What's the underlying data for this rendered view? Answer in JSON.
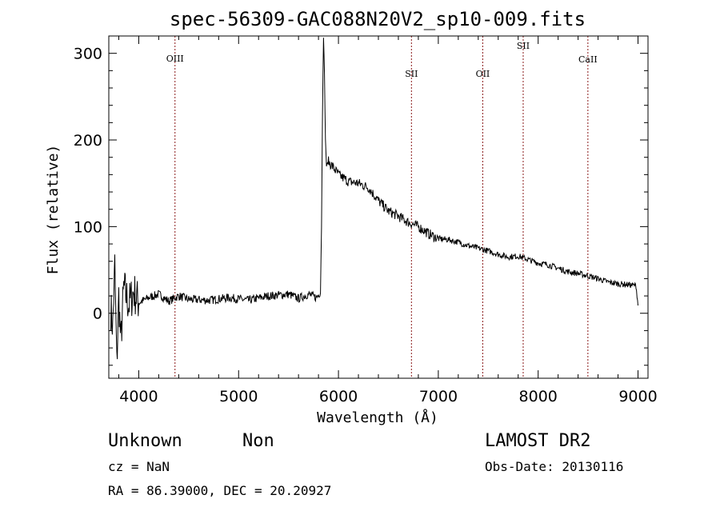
{
  "chart_data": {
    "type": "line",
    "title": "spec-56309-GAC088N20V2_sp10-009.fits",
    "xlabel": "Wavelength (Å)",
    "ylabel": "Flux (relative)",
    "xlim": [
      3700,
      9100
    ],
    "ylim": [
      -75,
      320
    ],
    "x_ticks": [
      4000,
      5000,
      6000,
      7000,
      8000,
      9000
    ],
    "y_ticks": [
      0,
      100,
      200,
      300
    ],
    "grid": false,
    "line_color": "#000000",
    "marker_color": "#8b1a1a",
    "spectral_lines": [
      {
        "label": "OIII",
        "x": 4363
      },
      {
        "label": "SII",
        "x": 6731
      },
      {
        "label": "OII",
        "x": 7445
      },
      {
        "label": "SII",
        "x": 7850
      },
      {
        "label": "CaII",
        "x": 8498
      }
    ],
    "series": [
      {
        "x": [
          3720,
          3740,
          3760,
          3780,
          3800,
          3820,
          3850,
          3900,
          3950,
          4000,
          4100,
          4200,
          4300,
          4400,
          4500,
          4700,
          4900,
          5100,
          5300,
          5500,
          5600,
          5700,
          5780,
          5820,
          5830,
          5840,
          5850,
          5860,
          5870,
          5880,
          5900,
          5950,
          6000,
          6100,
          6200,
          6300,
          6400,
          6500,
          6600,
          6700,
          6800,
          6900,
          7000,
          7100,
          7200,
          7300,
          7400,
          7500,
          7600,
          7700,
          7800,
          7900,
          8000,
          8100,
          8200,
          8300,
          8400,
          8500,
          8600,
          8700,
          8800,
          8900,
          8980,
          9000
        ],
        "y": [
          5,
          -15,
          55,
          -60,
          20,
          -35,
          30,
          10,
          25,
          12,
          18,
          22,
          14,
          20,
          16,
          15,
          18,
          15,
          20,
          22,
          17,
          22,
          18,
          25,
          100,
          230,
          320,
          275,
          200,
          170,
          175,
          168,
          160,
          152,
          150,
          145,
          130,
          118,
          112,
          105,
          100,
          92,
          86,
          85,
          82,
          78,
          75,
          72,
          68,
          65,
          66,
          62,
          58,
          56,
          52,
          48,
          46,
          43,
          40,
          36,
          34,
          33,
          32,
          10
        ]
      }
    ]
  },
  "footer": {
    "object_class": "Unknown",
    "object_subclass": "Non",
    "survey": "LAMOST DR2",
    "cz": "cz = NaN",
    "obs_date": "Obs-Date: 20130116",
    "coords": "RA =  86.39000, DEC =  20.20927"
  }
}
